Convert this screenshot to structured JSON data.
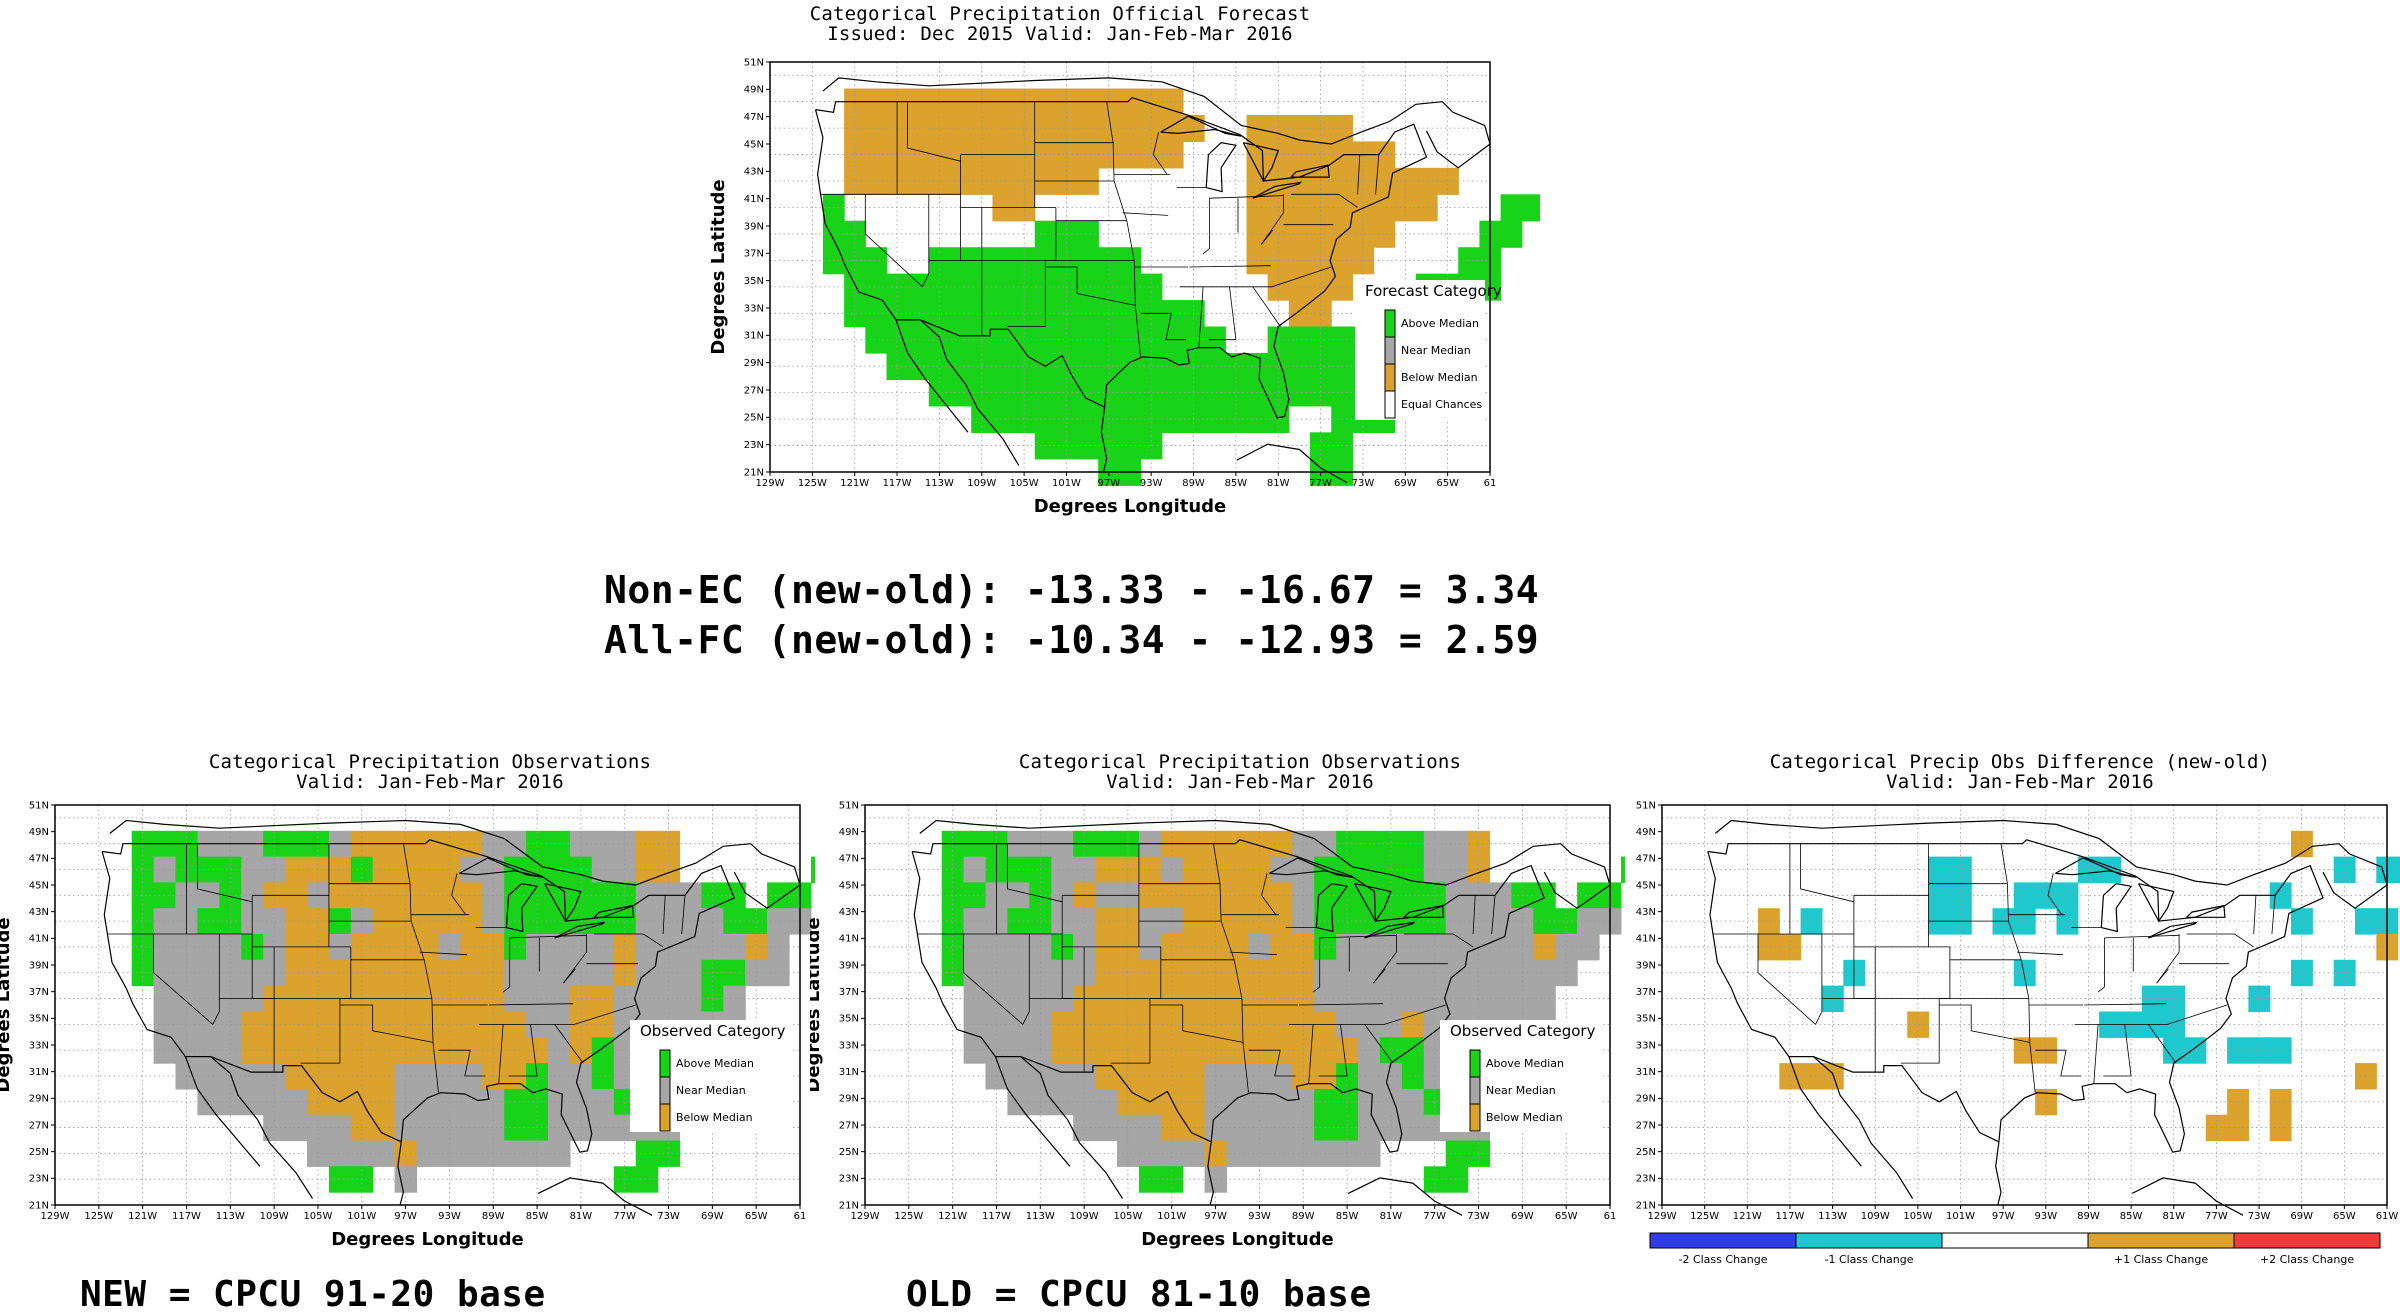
{
  "top_panel": {
    "title_line1": "Categorical Precipitation Official Forecast",
    "title_line2": "Issued: Dec 2015 Valid: Jan-Feb-Mar 2016",
    "ylabel": "Degrees Latitude",
    "xlabel": "Degrees Longitude",
    "legend_title": "Forecast Category",
    "legend_items": [
      "Above Median",
      "Near Median",
      "Below Median",
      "Equal Chances"
    ]
  },
  "scores": {
    "line1": "Non-EC (new-old): -13.33 - -16.67 = 3.34",
    "line2": "All-FC (new-old): -10.34 - -12.93 = 2.59"
  },
  "left_panel": {
    "title_line1": "Categorical Precipitation Observations",
    "title_line2": "Valid: Jan-Feb-Mar 2016",
    "ylabel": "Degrees Latitude",
    "xlabel": "Degrees Longitude",
    "legend_title": "Observed Category",
    "legend_items": [
      "Above Median",
      "Near Median",
      "Below Median"
    ],
    "caption": "NEW = CPCU 91-20 base"
  },
  "middle_panel": {
    "title_line1": "Categorical Precipitation Observations",
    "title_line2": "Valid: Jan-Feb-Mar 2016",
    "ylabel": "Degrees Latitude",
    "xlabel": "Degrees Longitude",
    "legend_title": "Observed Category",
    "legend_items": [
      "Above Median",
      "Near Median",
      "Below Median"
    ],
    "caption": "OLD = CPCU 81-10 base"
  },
  "right_panel": {
    "title_line1": "Categorical Precip Obs Difference (new-old)",
    "title_line2": "Valid: Jan-Feb-Mar 2016",
    "colorbar_labels": [
      "-2 Class Change",
      "-1 Class Change",
      "+1 Class Change",
      "+2 Class Change"
    ],
    "colorbar_colors": [
      "#2e3de8",
      "#1fc8cc",
      "#ffffff",
      "#dba32e",
      "#f03a3a"
    ]
  },
  "axes": {
    "lon_ticks": [
      "129W",
      "125W",
      "121W",
      "117W",
      "113W",
      "109W",
      "105W",
      "101W",
      "97W",
      "93W",
      "89W",
      "85W",
      "81W",
      "77W",
      "73W",
      "69W",
      "65W",
      "61"
    ],
    "lon_ticks_right": [
      "129W",
      "125W",
      "121W",
      "117W",
      "113W",
      "109W",
      "105W",
      "101W",
      "97W",
      "93W",
      "89W",
      "85W",
      "81W",
      "77W",
      "73W",
      "69W",
      "65W",
      "61W"
    ],
    "lat_ticks": [
      "51N",
      "49N",
      "47N",
      "45N",
      "43N",
      "41N",
      "39N",
      "37N",
      "35N",
      "33N",
      "31N",
      "29N",
      "27N",
      "25N",
      "23N",
      "21N"
    ]
  },
  "colors": {
    "above": "#19d319",
    "near": "#a6a6a6",
    "below": "#dba32e",
    "equal": "#ffffff",
    "minus1": "#1fc8cc",
    "plus1": "#dba32e"
  }
}
